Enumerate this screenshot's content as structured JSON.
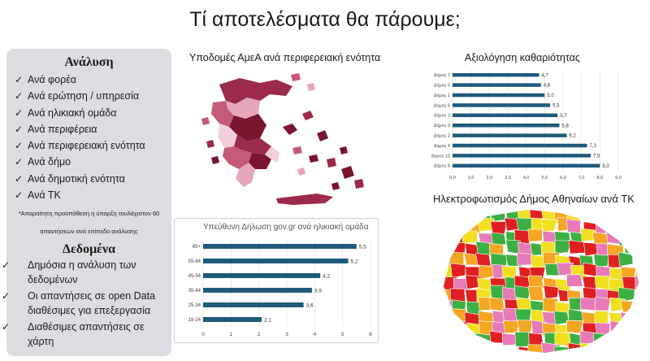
{
  "title": "Τί αποτελέσματα θα πάρουμε;",
  "analysis": {
    "heading": "Ανάλυση",
    "items": [
      "Ανά φορέα",
      "Ανά ερώτηση / υπηρεσία",
      "Ανά ηλικιακή ομάδα",
      "Ανά περιφέρεια",
      "Ανά περιφερειακή ενότητα",
      "Ανά δήμο",
      "Ανά δημοτική ενότητα",
      "Ανά ΤΚ"
    ],
    "note_line1": "*Απαραίτητη προϋπόθεση η ύπαρξη τουλάχιστον 60",
    "note_line2": "απαντήσεων ανά επίπεδο ανάλυσης"
  },
  "data_section": {
    "heading": "Δεδομένα",
    "items": [
      "Δημόσια η ανάλυση των δεδομένων",
      "Οι απαντήσεις σε open Data διαθέσιμες για επεξεργασία",
      "Διαθέσιμες απαντήσεις σε χάρτη"
    ]
  },
  "check_symbol": "✓",
  "map_greece": {
    "title": "Υποδομές ΑμεΑ ανά περιφερειακή ενότητα",
    "colors": [
      "#7a1530",
      "#9c2a4a",
      "#c45a78",
      "#e6a6bb",
      "#f3cfdc"
    ]
  },
  "map_athens": {
    "title": "Ηλεκτροφωτισμός Δήμος Αθηναίων ανά ΤΚ",
    "colors": [
      "#e02020",
      "#3cb043",
      "#f0e020",
      "#e87ab8",
      "#f5a623"
    ]
  },
  "chart_data": [
    {
      "type": "bar",
      "orientation": "horizontal",
      "title": "Αξιολόγηση καθαριότητας",
      "categories": [
        "Δήμος 7",
        "Δήμος 5",
        "Δήμος 1",
        "Δήμος 6",
        "Δήμος 3",
        "Δήμος 9",
        "Δήμος 2",
        "Δήμος 4",
        "Δήμος 10",
        "Δήμος 8"
      ],
      "values": [
        4.7,
        4.8,
        5.0,
        5.3,
        5.7,
        5.8,
        6.2,
        7.3,
        7.5,
        8.0
      ],
      "value_labels": [
        "4,7",
        "4,8",
        "5,0",
        "5,3",
        "5,7",
        "5,8",
        "6,2",
        "7,3",
        "7,5",
        "8,0"
      ],
      "xticks": [
        "0,0",
        "1,0",
        "2,0",
        "3,0",
        "4,0",
        "5,0",
        "6,0",
        "7,0",
        "8,0",
        "9,0"
      ],
      "xlim": [
        0,
        9
      ],
      "color": "#1f5a7a",
      "grid": true
    },
    {
      "type": "bar",
      "orientation": "horizontal",
      "title": "Υπεύθυνη Δήλωση gov.gr ανά ηλικιακή ομάδα",
      "categories": [
        "65+",
        "55-64",
        "45-54",
        "35-44",
        "25-34",
        "18-24"
      ],
      "values": [
        5.5,
        5.2,
        4.2,
        3.9,
        3.6,
        2.1
      ],
      "value_labels": [
        "5,5",
        "5,2",
        "4,2",
        "3,9",
        "3,6",
        "2,1"
      ],
      "xticks": [
        "0",
        "1",
        "2",
        "3",
        "4",
        "5",
        "6"
      ],
      "xlim": [
        0,
        6
      ],
      "color": "#1f5a7a",
      "grid": true
    }
  ]
}
